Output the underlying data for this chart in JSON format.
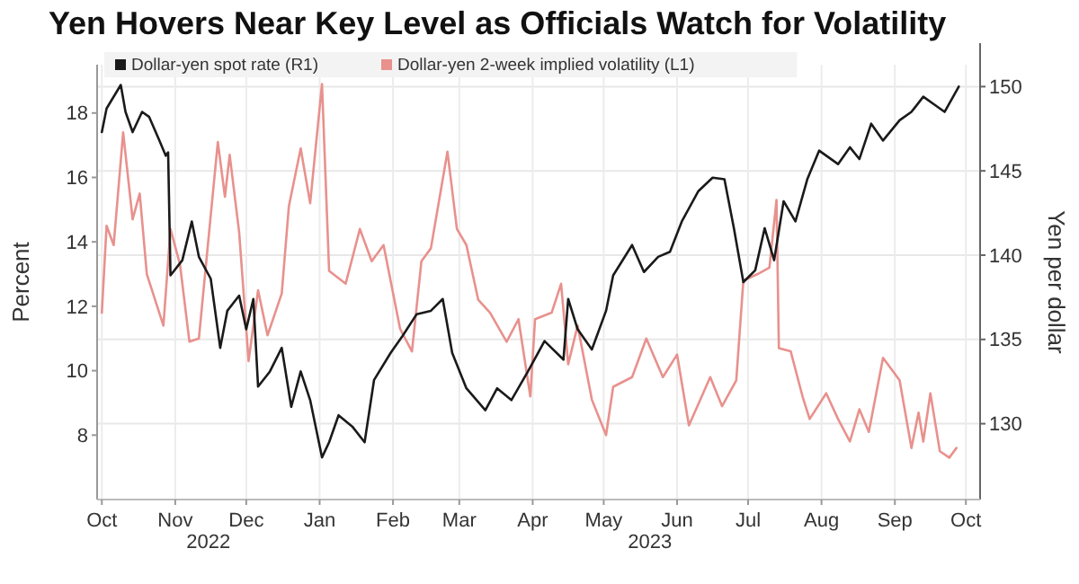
{
  "chart_data": {
    "type": "line",
    "title": "Yen Hovers Near Key Level as Officials Watch for Volatility",
    "ylabel": "Percent",
    "y2label": "Yen per dollar",
    "xlim": [
      "2022-09-29",
      "2023-10-07"
    ],
    "xticks": [
      {
        "value": "2022-10-01",
        "label": "Oct"
      },
      {
        "value": "2022-11-01",
        "label": "Nov"
      },
      {
        "value": "2022-12-01",
        "label": "Dec"
      },
      {
        "value": "2023-01-01",
        "label": "Jan"
      },
      {
        "value": "2023-02-01",
        "label": "Feb"
      },
      {
        "value": "2023-03-01",
        "label": "Mar"
      },
      {
        "value": "2023-04-01",
        "label": "Apr"
      },
      {
        "value": "2023-05-01",
        "label": "May"
      },
      {
        "value": "2023-06-01",
        "label": "Jun"
      },
      {
        "value": "2023-07-01",
        "label": "Jul"
      },
      {
        "value": "2023-08-01",
        "label": "Aug"
      },
      {
        "value": "2023-09-01",
        "label": "Sep"
      },
      {
        "value": "2023-10-01",
        "label": "Oct"
      }
    ],
    "ylim": [
      6,
      19.5
    ],
    "yticks": [
      8,
      10,
      12,
      14,
      16,
      18
    ],
    "y2lim": [
      125.5,
      151.3
    ],
    "y2ticks": [
      130,
      135,
      140,
      145,
      150
    ],
    "grid": true,
    "legend": "top left",
    "annotations": [
      "2022",
      "2023"
    ],
    "series": [
      {
        "name": "Dollar-yen spot rate (R1)",
        "color": "#1a1a1a",
        "axis": "y2",
        "x": [
          "2022-10-01",
          "2022-10-03",
          "2022-10-09",
          "2022-10-11",
          "2022-10-14",
          "2022-10-18",
          "2022-10-21",
          "2022-10-25",
          "2022-10-28",
          "2022-10-29",
          "2022-10-30",
          "2022-11-04",
          "2022-11-08",
          "2022-11-11",
          "2022-11-16",
          "2022-11-20",
          "2022-11-23",
          "2022-11-28",
          "2022-12-01",
          "2022-12-04",
          "2022-12-06",
          "2022-12-11",
          "2022-12-16",
          "2022-12-20",
          "2022-12-24",
          "2022-12-28",
          "2023-01-02",
          "2023-01-05",
          "2023-01-09",
          "2023-01-15",
          "2023-01-20",
          "2023-01-24",
          "2023-01-31",
          "2023-02-05",
          "2023-02-11",
          "2023-02-17",
          "2023-02-22",
          "2023-02-26",
          "2023-03-04",
          "2023-03-12",
          "2023-03-17",
          "2023-03-23",
          "2023-03-30",
          "2023-04-06",
          "2023-04-14",
          "2023-04-16",
          "2023-04-20",
          "2023-04-26",
          "2023-05-02",
          "2023-05-05",
          "2023-05-13",
          "2023-05-18",
          "2023-05-24",
          "2023-05-29",
          "2023-06-03",
          "2023-06-10",
          "2023-06-16",
          "2023-06-21",
          "2023-06-25",
          "2023-06-29",
          "2023-07-04",
          "2023-07-08",
          "2023-07-12",
          "2023-07-16",
          "2023-07-21",
          "2023-07-26",
          "2023-07-31",
          "2023-08-08",
          "2023-08-13",
          "2023-08-17",
          "2023-08-22",
          "2023-08-27",
          "2023-09-03",
          "2023-09-08",
          "2023-09-13",
          "2023-09-18",
          "2023-09-22",
          "2023-09-28"
        ],
        "values": [
          147.3,
          148.7,
          150.1,
          148.5,
          147.3,
          148.5,
          148.2,
          146.9,
          145.9,
          146.1,
          138.8,
          139.7,
          142,
          139.9,
          138.6,
          134.5,
          136.7,
          137.6,
          135.6,
          137.4,
          132.2,
          133.1,
          134.5,
          131,
          133.1,
          131.4,
          128,
          128.9,
          130.5,
          129.8,
          128.9,
          132.6,
          134.2,
          135.2,
          136.5,
          136.7,
          137.4,
          134.2,
          132.1,
          130.8,
          132.1,
          131.4,
          133.1,
          134.9,
          133.8,
          137.4,
          135.6,
          134.4,
          136.7,
          138.8,
          140.6,
          139,
          139.9,
          140.2,
          142,
          143.8,
          144.6,
          144.5,
          141.6,
          138.4,
          139.1,
          141.6,
          139.7,
          143.2,
          142,
          144.5,
          146.2,
          145.4,
          146.4,
          145.7,
          147.8,
          146.8,
          148,
          148.5,
          149.4,
          148.9,
          148.5,
          150
        ]
      },
      {
        "name": "Dollar-yen 2-week implied volatility (L1)",
        "color": "#e8918d",
        "x": [
          "2022-10-01",
          "2022-10-03",
          "2022-10-06",
          "2022-10-10",
          "2022-10-14",
          "2022-10-17",
          "2022-10-20",
          "2022-10-27",
          "2022-10-30",
          "2022-11-03",
          "2022-11-07",
          "2022-11-11",
          "2022-11-14",
          "2022-11-19",
          "2022-11-22",
          "2022-11-24",
          "2022-11-28",
          "2022-12-02",
          "2022-12-06",
          "2022-12-10",
          "2022-12-16",
          "2022-12-19",
          "2022-12-24",
          "2022-12-28",
          "2023-01-02",
          "2023-01-05",
          "2023-01-12",
          "2023-01-18",
          "2023-01-23",
          "2023-01-28",
          "2023-02-04",
          "2023-02-09",
          "2023-02-13",
          "2023-02-17",
          "2023-02-24",
          "2023-02-28",
          "2023-03-04",
          "2023-03-09",
          "2023-03-14",
          "2023-03-21",
          "2023-03-26",
          "2023-03-31",
          "2023-04-02",
          "2023-04-09",
          "2023-04-13",
          "2023-04-16",
          "2023-04-20",
          "2023-04-26",
          "2023-05-02",
          "2023-05-05",
          "2023-05-13",
          "2023-05-19",
          "2023-05-26",
          "2023-06-01",
          "2023-06-06",
          "2023-06-15",
          "2023-06-20",
          "2023-06-26",
          "2023-06-29",
          "2023-07-05",
          "2023-07-10",
          "2023-07-13",
          "2023-07-14",
          "2023-07-19",
          "2023-07-24",
          "2023-07-27",
          "2023-08-03",
          "2023-08-08",
          "2023-08-13",
          "2023-08-17",
          "2023-08-21",
          "2023-08-27",
          "2023-09-03",
          "2023-09-08",
          "2023-09-11",
          "2023-09-13",
          "2023-09-16",
          "2023-09-20",
          "2023-09-24",
          "2023-09-27"
        ],
        "values": [
          11.8,
          14.5,
          13.9,
          17.4,
          14.7,
          15.5,
          13,
          11.4,
          14.4,
          13.3,
          10.9,
          11,
          13.3,
          17.1,
          15.4,
          16.7,
          14.3,
          10.3,
          12.5,
          11.1,
          12.4,
          15.1,
          16.9,
          15.2,
          18.9,
          13.1,
          12.7,
          14.4,
          13.4,
          13.9,
          11.3,
          10.6,
          13.4,
          13.8,
          16.8,
          14.4,
          13.9,
          12.2,
          11.8,
          10.9,
          11.6,
          9.2,
          11.6,
          11.8,
          12.7,
          10.2,
          11.4,
          9.1,
          8,
          9.5,
          9.8,
          11,
          9.8,
          10.5,
          8.3,
          9.8,
          8.9,
          9.7,
          12.8,
          13,
          13.2,
          15.3,
          10.7,
          10.6,
          9.2,
          8.5,
          9.3,
          8.5,
          7.8,
          8.8,
          8.1,
          10.4,
          9.7,
          7.6,
          8.7,
          7.8,
          9.3,
          7.5,
          7.3,
          7.6
        ]
      }
    ]
  }
}
